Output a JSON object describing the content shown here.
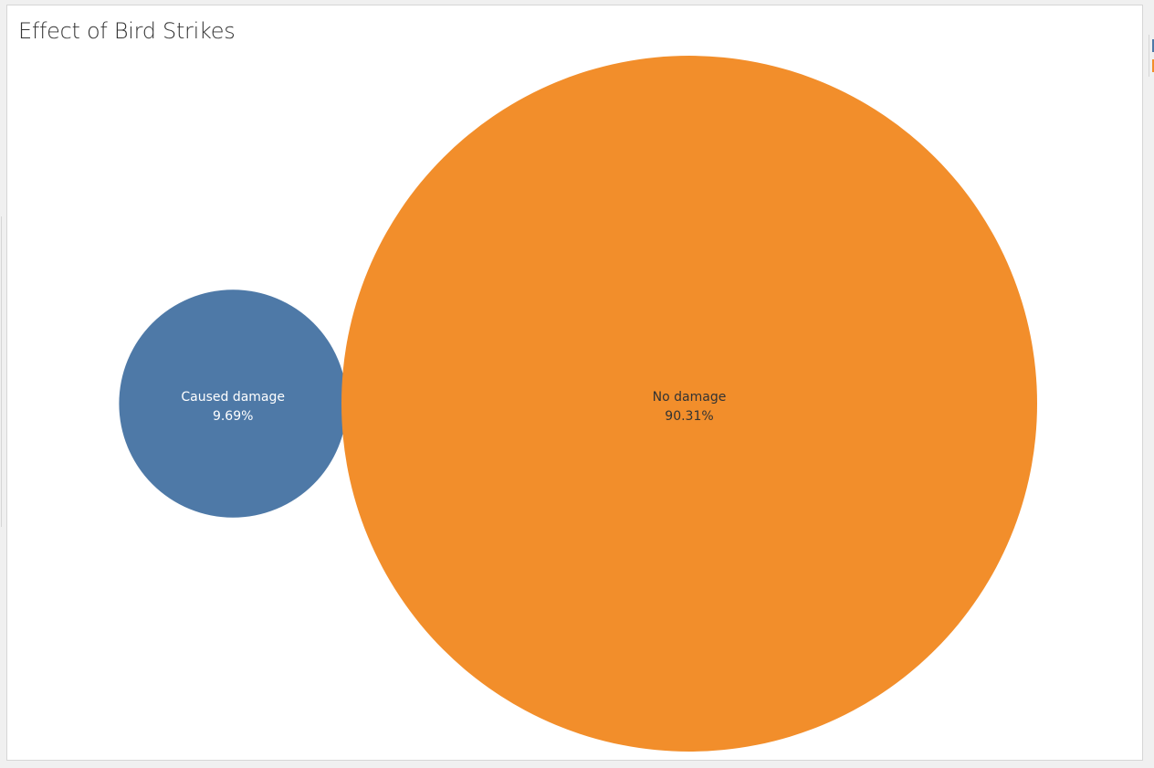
{
  "chart_data": {
    "type": "bubble",
    "title": "Effect of Bird Strikes",
    "series": [
      {
        "name": "Caused damage",
        "value_label": "9.69%",
        "value": 9.69,
        "color": "#4e79a7",
        "label_color": "#ffffff"
      },
      {
        "name": "No damage",
        "value_label": "90.31%",
        "value": 90.31,
        "color": "#f28e2b",
        "label_color": "#333333"
      }
    ]
  },
  "legend": {
    "colors": [
      "#4e79a7",
      "#f28e2b"
    ]
  }
}
